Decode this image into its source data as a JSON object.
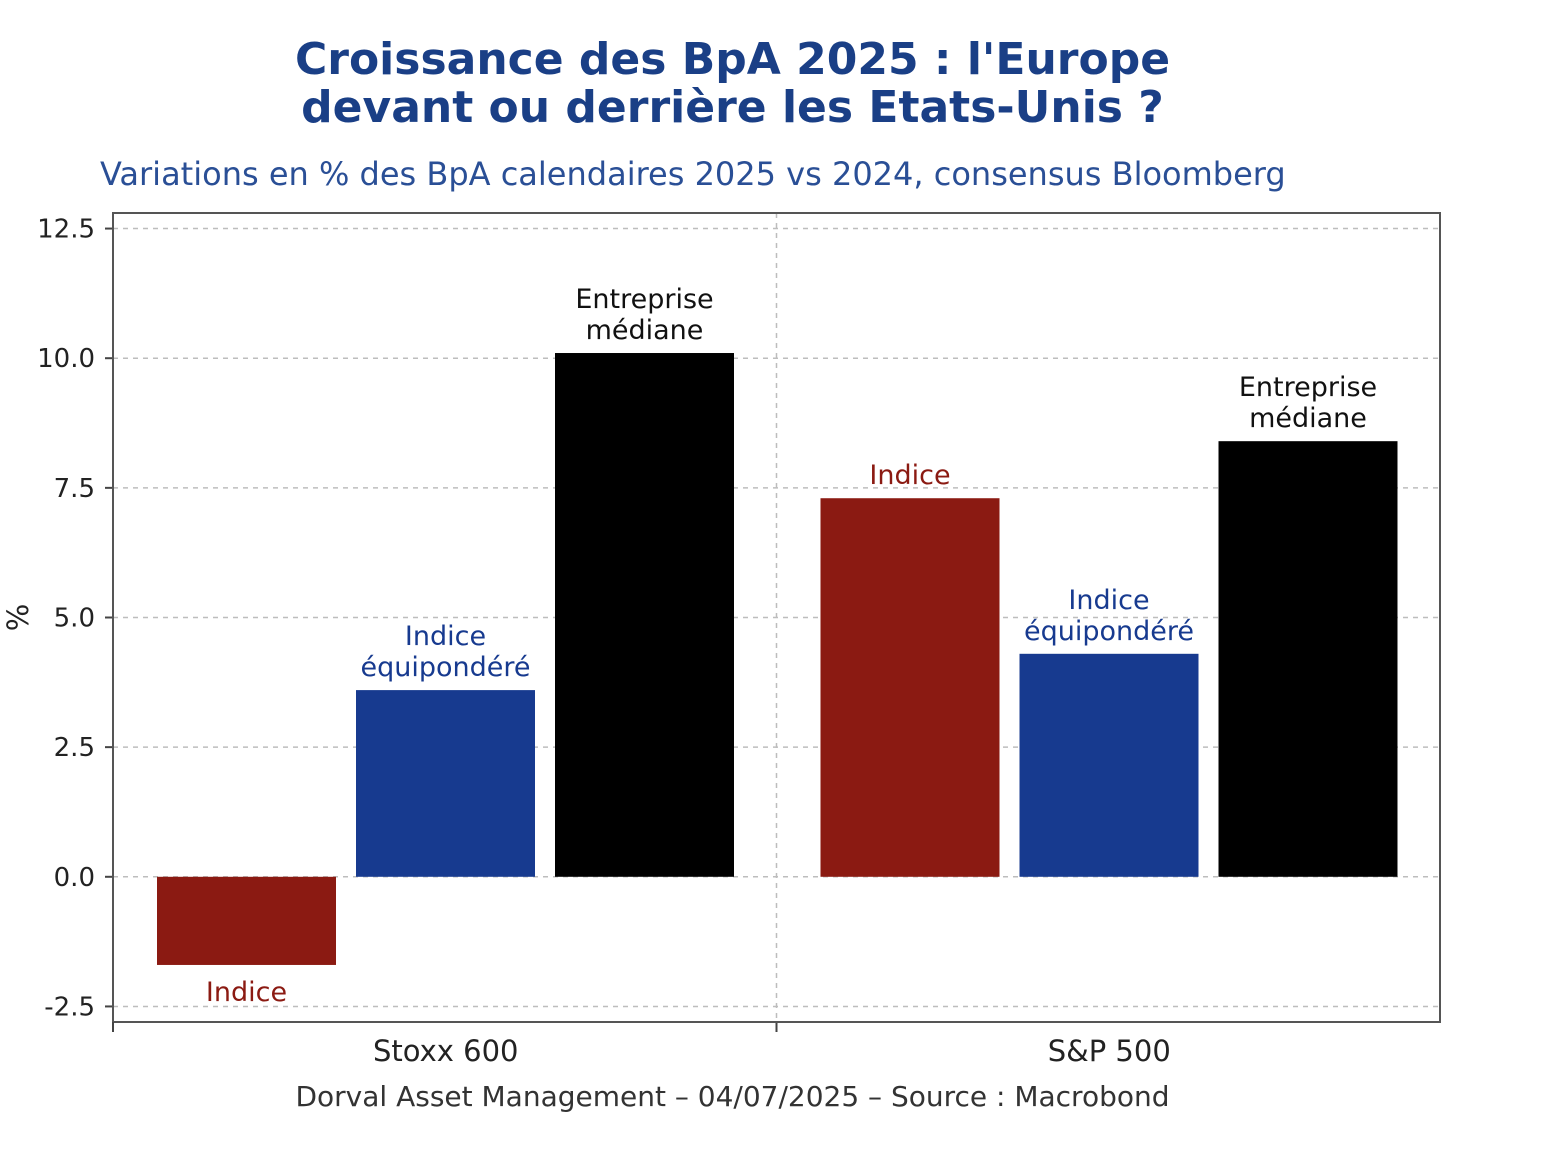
{
  "title_lines": [
    "Croissance des BpA 2025 : l'Europe",
    "devant ou derrière les Etats-Unis ?"
  ],
  "subtitle": "Variations en % des BpA calendaires 2025 vs 2024, consensus Bloomberg",
  "footer": "Dorval Asset Management – 04/07/2025  –   Source : Macrobond",
  "colors": {
    "indice": "#8b1a12",
    "equipondere": "#173a8f",
    "mediane": "#000000"
  },
  "chart_data": {
    "type": "bar",
    "ylabel": "%",
    "ylim": [
      -2.8,
      12.8
    ],
    "yticks": [
      "12.5",
      "10.0",
      "7.5",
      "5.0",
      "2.5",
      "0.0",
      "-2.5"
    ],
    "ytick_values": [
      12.5,
      10.0,
      7.5,
      5.0,
      2.5,
      0.0,
      -2.5
    ],
    "categories": [
      "Stoxx 600",
      "S&P 500"
    ],
    "grid": true,
    "series": [
      {
        "name": "Indice",
        "values": [
          -1.7,
          7.3
        ],
        "color": "#8b1a12"
      },
      {
        "name": "Indice équipondéré",
        "values": [
          3.6,
          4.3
        ],
        "color": "#173a8f"
      },
      {
        "name": "Entreprise médiane",
        "values": [
          10.1,
          8.4
        ],
        "color": "#000000"
      }
    ],
    "bar_labels": [
      [
        [
          "Indice"
        ],
        [
          "Indice"
        ]
      ],
      [
        [
          "Indice",
          "équipondéré"
        ],
        [
          "Indice",
          "équipondéré"
        ]
      ],
      [
        [
          "Entreprise",
          "médiane"
        ],
        [
          "Entreprise",
          "médiane"
        ]
      ]
    ]
  }
}
